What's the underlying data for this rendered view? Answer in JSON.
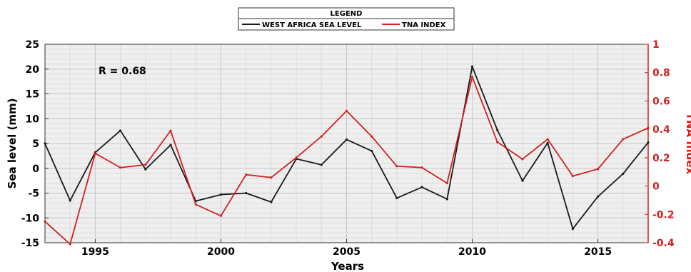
{
  "chart_data": {
    "type": "line",
    "x": [
      1993,
      1994,
      1995,
      1996,
      1997,
      1998,
      1999,
      2000,
      2001,
      2002,
      2003,
      2004,
      2005,
      2006,
      2007,
      2008,
      2009,
      2010,
      2011,
      2012,
      2013,
      2014,
      2015,
      2016,
      2017
    ],
    "series": [
      {
        "name": "WEST AFRICA SEA LEVEL",
        "axis": "left",
        "color": "#1a1a1a",
        "values": [
          5.0,
          -6.5,
          3.2,
          7.6,
          -0.2,
          4.7,
          -6.6,
          -5.3,
          -5.0,
          -6.8,
          1.9,
          0.7,
          5.8,
          3.5,
          -6.0,
          -3.8,
          -6.2,
          20.5,
          7.7,
          -2.5,
          5.1,
          -12.2,
          -5.7,
          -1.1,
          5.2
        ]
      },
      {
        "name": "TNA INDEX",
        "axis": "right",
        "color": "#d42020",
        "values": [
          -0.25,
          -0.41,
          0.23,
          0.13,
          0.15,
          0.39,
          -0.13,
          -0.21,
          0.08,
          0.06,
          0.2,
          0.35,
          0.53,
          0.35,
          0.14,
          0.13,
          0.02,
          0.77,
          0.31,
          0.19,
          0.33,
          0.07,
          0.12,
          0.33,
          0.41
        ]
      }
    ],
    "xlabel": "Years",
    "ylabel": "Sea level (mm)",
    "y2label": "TNA Index",
    "xlim": [
      1993,
      2017
    ],
    "ylim": [
      -15,
      25
    ],
    "y2lim": [
      -0.4,
      1.0
    ],
    "xticks": [
      1995,
      2000,
      2005,
      2010,
      2015
    ],
    "yticks": [
      -15,
      -10,
      -5,
      0,
      5,
      10,
      15,
      20,
      25
    ],
    "y2ticks": [
      "-0.4",
      "-0.2",
      "0",
      "0.2",
      "0.4",
      "0.6",
      "0.8",
      "1"
    ],
    "annotation": "R = 0.68",
    "legend_title": "LEGEND",
    "legend_position": "top-center",
    "grid": true,
    "right_axis_color": "#d42020"
  }
}
